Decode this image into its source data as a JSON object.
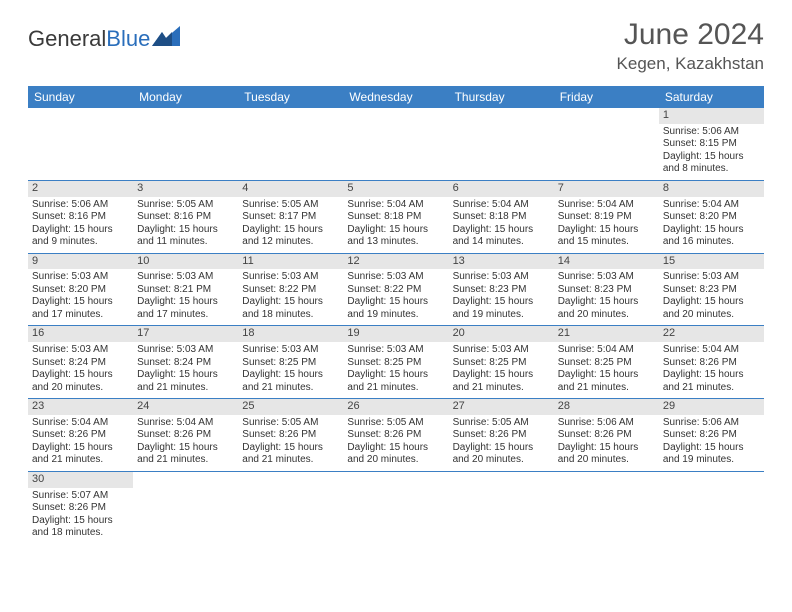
{
  "logo": {
    "text1": "General",
    "text2": "Blue"
  },
  "title": {
    "month": "June 2024",
    "location": "Kegen, Kazakhstan"
  },
  "colors": {
    "header_bg": "#3b7fc4",
    "header_text": "#ffffff",
    "daynum_bg": "#e6e6e6",
    "rule": "#3b7fc4",
    "logo_blue": "#2a6ebb",
    "text": "#333333"
  },
  "weekdays": [
    "Sunday",
    "Monday",
    "Tuesday",
    "Wednesday",
    "Thursday",
    "Friday",
    "Saturday"
  ],
  "leading_blanks": 6,
  "days": [
    {
      "n": "1",
      "sunrise": "Sunrise: 5:06 AM",
      "sunset": "Sunset: 8:15 PM",
      "day1": "Daylight: 15 hours",
      "day2": "and 8 minutes."
    },
    {
      "n": "2",
      "sunrise": "Sunrise: 5:06 AM",
      "sunset": "Sunset: 8:16 PM",
      "day1": "Daylight: 15 hours",
      "day2": "and 9 minutes."
    },
    {
      "n": "3",
      "sunrise": "Sunrise: 5:05 AM",
      "sunset": "Sunset: 8:16 PM",
      "day1": "Daylight: 15 hours",
      "day2": "and 11 minutes."
    },
    {
      "n": "4",
      "sunrise": "Sunrise: 5:05 AM",
      "sunset": "Sunset: 8:17 PM",
      "day1": "Daylight: 15 hours",
      "day2": "and 12 minutes."
    },
    {
      "n": "5",
      "sunrise": "Sunrise: 5:04 AM",
      "sunset": "Sunset: 8:18 PM",
      "day1": "Daylight: 15 hours",
      "day2": "and 13 minutes."
    },
    {
      "n": "6",
      "sunrise": "Sunrise: 5:04 AM",
      "sunset": "Sunset: 8:18 PM",
      "day1": "Daylight: 15 hours",
      "day2": "and 14 minutes."
    },
    {
      "n": "7",
      "sunrise": "Sunrise: 5:04 AM",
      "sunset": "Sunset: 8:19 PM",
      "day1": "Daylight: 15 hours",
      "day2": "and 15 minutes."
    },
    {
      "n": "8",
      "sunrise": "Sunrise: 5:04 AM",
      "sunset": "Sunset: 8:20 PM",
      "day1": "Daylight: 15 hours",
      "day2": "and 16 minutes."
    },
    {
      "n": "9",
      "sunrise": "Sunrise: 5:03 AM",
      "sunset": "Sunset: 8:20 PM",
      "day1": "Daylight: 15 hours",
      "day2": "and 17 minutes."
    },
    {
      "n": "10",
      "sunrise": "Sunrise: 5:03 AM",
      "sunset": "Sunset: 8:21 PM",
      "day1": "Daylight: 15 hours",
      "day2": "and 17 minutes."
    },
    {
      "n": "11",
      "sunrise": "Sunrise: 5:03 AM",
      "sunset": "Sunset: 8:22 PM",
      "day1": "Daylight: 15 hours",
      "day2": "and 18 minutes."
    },
    {
      "n": "12",
      "sunrise": "Sunrise: 5:03 AM",
      "sunset": "Sunset: 8:22 PM",
      "day1": "Daylight: 15 hours",
      "day2": "and 19 minutes."
    },
    {
      "n": "13",
      "sunrise": "Sunrise: 5:03 AM",
      "sunset": "Sunset: 8:23 PM",
      "day1": "Daylight: 15 hours",
      "day2": "and 19 minutes."
    },
    {
      "n": "14",
      "sunrise": "Sunrise: 5:03 AM",
      "sunset": "Sunset: 8:23 PM",
      "day1": "Daylight: 15 hours",
      "day2": "and 20 minutes."
    },
    {
      "n": "15",
      "sunrise": "Sunrise: 5:03 AM",
      "sunset": "Sunset: 8:23 PM",
      "day1": "Daylight: 15 hours",
      "day2": "and 20 minutes."
    },
    {
      "n": "16",
      "sunrise": "Sunrise: 5:03 AM",
      "sunset": "Sunset: 8:24 PM",
      "day1": "Daylight: 15 hours",
      "day2": "and 20 minutes."
    },
    {
      "n": "17",
      "sunrise": "Sunrise: 5:03 AM",
      "sunset": "Sunset: 8:24 PM",
      "day1": "Daylight: 15 hours",
      "day2": "and 21 minutes."
    },
    {
      "n": "18",
      "sunrise": "Sunrise: 5:03 AM",
      "sunset": "Sunset: 8:25 PM",
      "day1": "Daylight: 15 hours",
      "day2": "and 21 minutes."
    },
    {
      "n": "19",
      "sunrise": "Sunrise: 5:03 AM",
      "sunset": "Sunset: 8:25 PM",
      "day1": "Daylight: 15 hours",
      "day2": "and 21 minutes."
    },
    {
      "n": "20",
      "sunrise": "Sunrise: 5:03 AM",
      "sunset": "Sunset: 8:25 PM",
      "day1": "Daylight: 15 hours",
      "day2": "and 21 minutes."
    },
    {
      "n": "21",
      "sunrise": "Sunrise: 5:04 AM",
      "sunset": "Sunset: 8:25 PM",
      "day1": "Daylight: 15 hours",
      "day2": "and 21 minutes."
    },
    {
      "n": "22",
      "sunrise": "Sunrise: 5:04 AM",
      "sunset": "Sunset: 8:26 PM",
      "day1": "Daylight: 15 hours",
      "day2": "and 21 minutes."
    },
    {
      "n": "23",
      "sunrise": "Sunrise: 5:04 AM",
      "sunset": "Sunset: 8:26 PM",
      "day1": "Daylight: 15 hours",
      "day2": "and 21 minutes."
    },
    {
      "n": "24",
      "sunrise": "Sunrise: 5:04 AM",
      "sunset": "Sunset: 8:26 PM",
      "day1": "Daylight: 15 hours",
      "day2": "and 21 minutes."
    },
    {
      "n": "25",
      "sunrise": "Sunrise: 5:05 AM",
      "sunset": "Sunset: 8:26 PM",
      "day1": "Daylight: 15 hours",
      "day2": "and 21 minutes."
    },
    {
      "n": "26",
      "sunrise": "Sunrise: 5:05 AM",
      "sunset": "Sunset: 8:26 PM",
      "day1": "Daylight: 15 hours",
      "day2": "and 20 minutes."
    },
    {
      "n": "27",
      "sunrise": "Sunrise: 5:05 AM",
      "sunset": "Sunset: 8:26 PM",
      "day1": "Daylight: 15 hours",
      "day2": "and 20 minutes."
    },
    {
      "n": "28",
      "sunrise": "Sunrise: 5:06 AM",
      "sunset": "Sunset: 8:26 PM",
      "day1": "Daylight: 15 hours",
      "day2": "and 20 minutes."
    },
    {
      "n": "29",
      "sunrise": "Sunrise: 5:06 AM",
      "sunset": "Sunset: 8:26 PM",
      "day1": "Daylight: 15 hours",
      "day2": "and 19 minutes."
    },
    {
      "n": "30",
      "sunrise": "Sunrise: 5:07 AM",
      "sunset": "Sunset: 8:26 PM",
      "day1": "Daylight: 15 hours",
      "day2": "and 18 minutes."
    }
  ]
}
